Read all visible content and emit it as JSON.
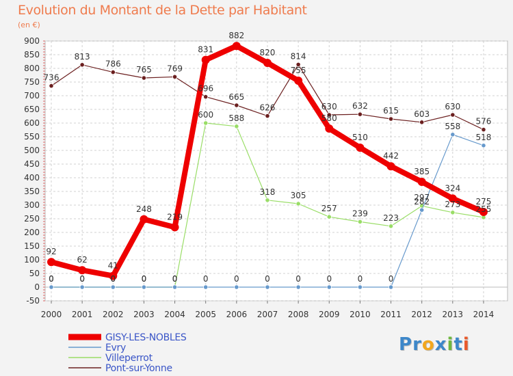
{
  "chart_data": {
    "type": "line",
    "title": "Evolution du Montant de la Dette par Habitant",
    "subtitle": "(en €)",
    "categories": [
      "2000",
      "2001",
      "2002",
      "2003",
      "2004",
      "2005",
      "2006",
      "2007",
      "2008",
      "2009",
      "2010",
      "2011",
      "2012",
      "2013",
      "2014"
    ],
    "ylim": [
      -50,
      900
    ],
    "yticks": [
      -50,
      0,
      50,
      100,
      150,
      200,
      250,
      300,
      350,
      400,
      450,
      500,
      550,
      600,
      650,
      700,
      750,
      800,
      850,
      900
    ],
    "grid": true,
    "legend_position": "bottom-left",
    "series": [
      {
        "name": "Pont-sur-Yonne",
        "color": "#6b1f1f",
        "values": [
          736,
          813,
          786,
          765,
          769,
          696,
          665,
          626,
          814,
          630,
          632,
          615,
          603,
          630,
          576
        ]
      },
      {
        "name": "Villeperrot",
        "color": "#99dd66",
        "values": [
          0,
          0,
          0,
          0,
          0,
          600,
          588,
          318,
          305,
          257,
          239,
          223,
          297,
          273,
          255
        ]
      },
      {
        "name": "Evry",
        "color": "#6699cc",
        "values": [
          0,
          0,
          0,
          0,
          0,
          0,
          0,
          0,
          0,
          0,
          0,
          0,
          282,
          558,
          518
        ]
      },
      {
        "name": "GISY-LES-NOBLES",
        "color": "#ee0000",
        "values": [
          92,
          62,
          41,
          248,
          219,
          831,
          882,
          820,
          755,
          580,
          510,
          442,
          385,
          324,
          275
        ]
      }
    ]
  },
  "legend": {
    "items": [
      {
        "label": "GISY-LES-NOBLES",
        "color": "#ee0000"
      },
      {
        "label": "Evry",
        "color": "#6699cc"
      },
      {
        "label": "Villeperrot",
        "color": "#99dd66"
      },
      {
        "label": "Pont-sur-Yonne",
        "color": "#6b1f1f"
      }
    ]
  },
  "brand": {
    "letters": [
      "P",
      "r",
      "o",
      "x",
      "i",
      "t",
      "i"
    ],
    "colors": [
      "#3d87c9",
      "#3d87c9",
      "#f2a71e",
      "#3d87c9",
      "#6fb83f",
      "#3d87c9",
      "#e95a2b"
    ]
  }
}
